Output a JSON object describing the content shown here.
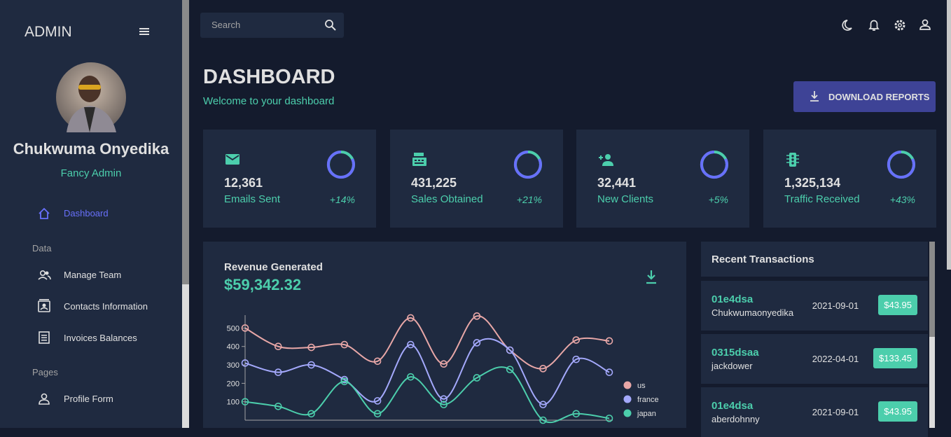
{
  "sidebar": {
    "brand": "ADMIN",
    "user_name": "Chukwuma Onyedika",
    "user_role": "Fancy Admin",
    "active_item": "Dashboard",
    "sections": [
      {
        "title": "Data",
        "items": [
          "Manage Team",
          "Contacts Information",
          "Invoices Balances"
        ]
      },
      {
        "title": "Pages",
        "items": [
          "Profile Form"
        ]
      }
    ]
  },
  "header": {
    "search_placeholder": "Search"
  },
  "dashboard": {
    "title": "DASHBOARD",
    "subtitle": "Welcome to your dashboard",
    "button": "DOWNLOAD REPORTS"
  },
  "stats": [
    {
      "value": "12,361",
      "label": "Emails Sent",
      "change": "+14%"
    },
    {
      "value": "431,225",
      "label": "Sales Obtained",
      "change": "+21%"
    },
    {
      "value": "32,441",
      "label": "New Clients",
      "change": "+5%"
    },
    {
      "value": "1,325,134",
      "label": "Traffic Received",
      "change": "+43%"
    }
  ],
  "revenue": {
    "title": "Revenue Generated",
    "amount": "$59,342.32"
  },
  "chart_data": {
    "type": "line",
    "ylim": [
      0,
      570
    ],
    "yticks": [
      100,
      200,
      300,
      400,
      500
    ],
    "series": [
      {
        "name": "us",
        "color": "#e8a7a7",
        "values": [
          500,
          400,
          395,
          410,
          320,
          555,
          305,
          565,
          380,
          280,
          435,
          430
        ]
      },
      {
        "name": "france",
        "color": "#a4a9fc",
        "values": [
          310,
          260,
          300,
          220,
          105,
          410,
          115,
          420,
          380,
          85,
          330,
          260
        ]
      },
      {
        "name": "japan",
        "color": "#4cceac",
        "values": [
          100,
          75,
          35,
          210,
          35,
          235,
          85,
          230,
          275,
          0,
          35,
          10
        ]
      }
    ]
  },
  "transactions": {
    "title": "Recent Transactions",
    "items": [
      {
        "id": "01e4dsa",
        "user": "Chukwumaonyedika",
        "date": "2021-09-01",
        "cost": "$43.95"
      },
      {
        "id": "0315dsaa",
        "user": "jackdower",
        "date": "2022-04-01",
        "cost": "$133.45"
      },
      {
        "id": "01e4dsa",
        "user": "aberdohnny",
        "date": "2021-09-01",
        "cost": "$43.95"
      }
    ]
  }
}
